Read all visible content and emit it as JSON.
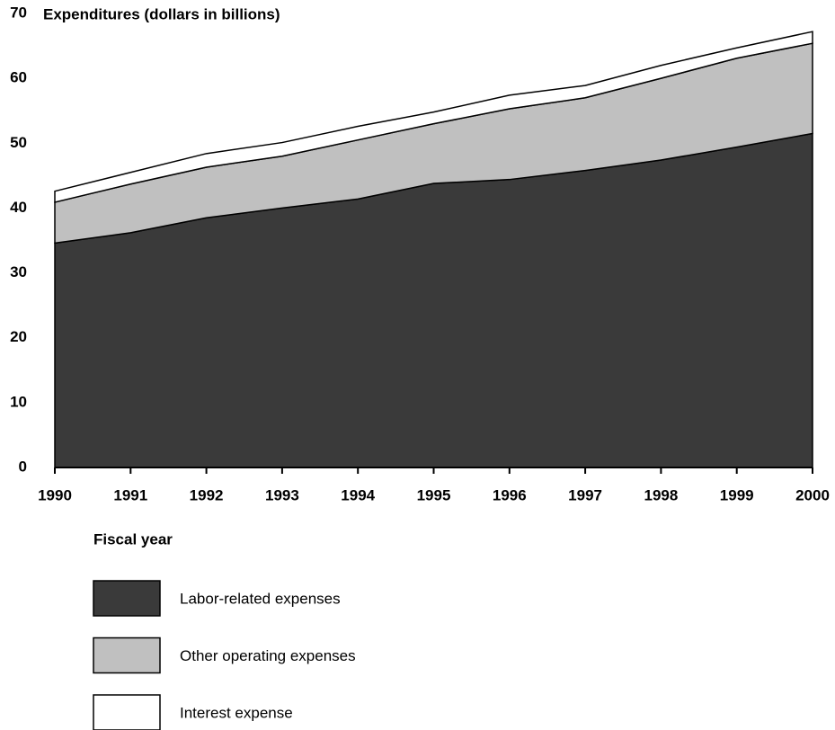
{
  "chart_data": {
    "type": "stacked_area",
    "title": "Expenditures (dollars in billions)",
    "x_label": "Fiscal year",
    "x": [
      1990,
      1991,
      1992,
      1993,
      1994,
      1995,
      1996,
      1997,
      1998,
      1999,
      2000
    ],
    "xlim": [
      1990,
      2000
    ],
    "xticks": [
      1990,
      1991,
      1992,
      1993,
      1994,
      1995,
      1996,
      1997,
      1998,
      1999,
      2000
    ],
    "ylim": [
      0,
      70
    ],
    "yticks": [
      0,
      10,
      20,
      30,
      40,
      50,
      60,
      70
    ],
    "series": [
      {
        "name": "Labor-related expenses",
        "color": "#3a3a3a",
        "values": [
          34.6,
          36.2,
          38.5,
          40.0,
          41.4,
          43.8,
          44.4,
          45.8,
          47.4,
          49.4,
          51.5
        ]
      },
      {
        "name": "Other operating expenses",
        "color": "#c0c0c0",
        "values": [
          6.3,
          7.5,
          7.8,
          8.0,
          9.1,
          9.2,
          10.9,
          11.2,
          12.6,
          13.7,
          13.9
        ]
      },
      {
        "name": "Interest expense",
        "color": "#ffffff",
        "values": [
          1.7,
          1.8,
          2.1,
          2.1,
          2.1,
          1.8,
          2.1,
          1.9,
          2.0,
          1.6,
          1.8
        ]
      }
    ]
  }
}
